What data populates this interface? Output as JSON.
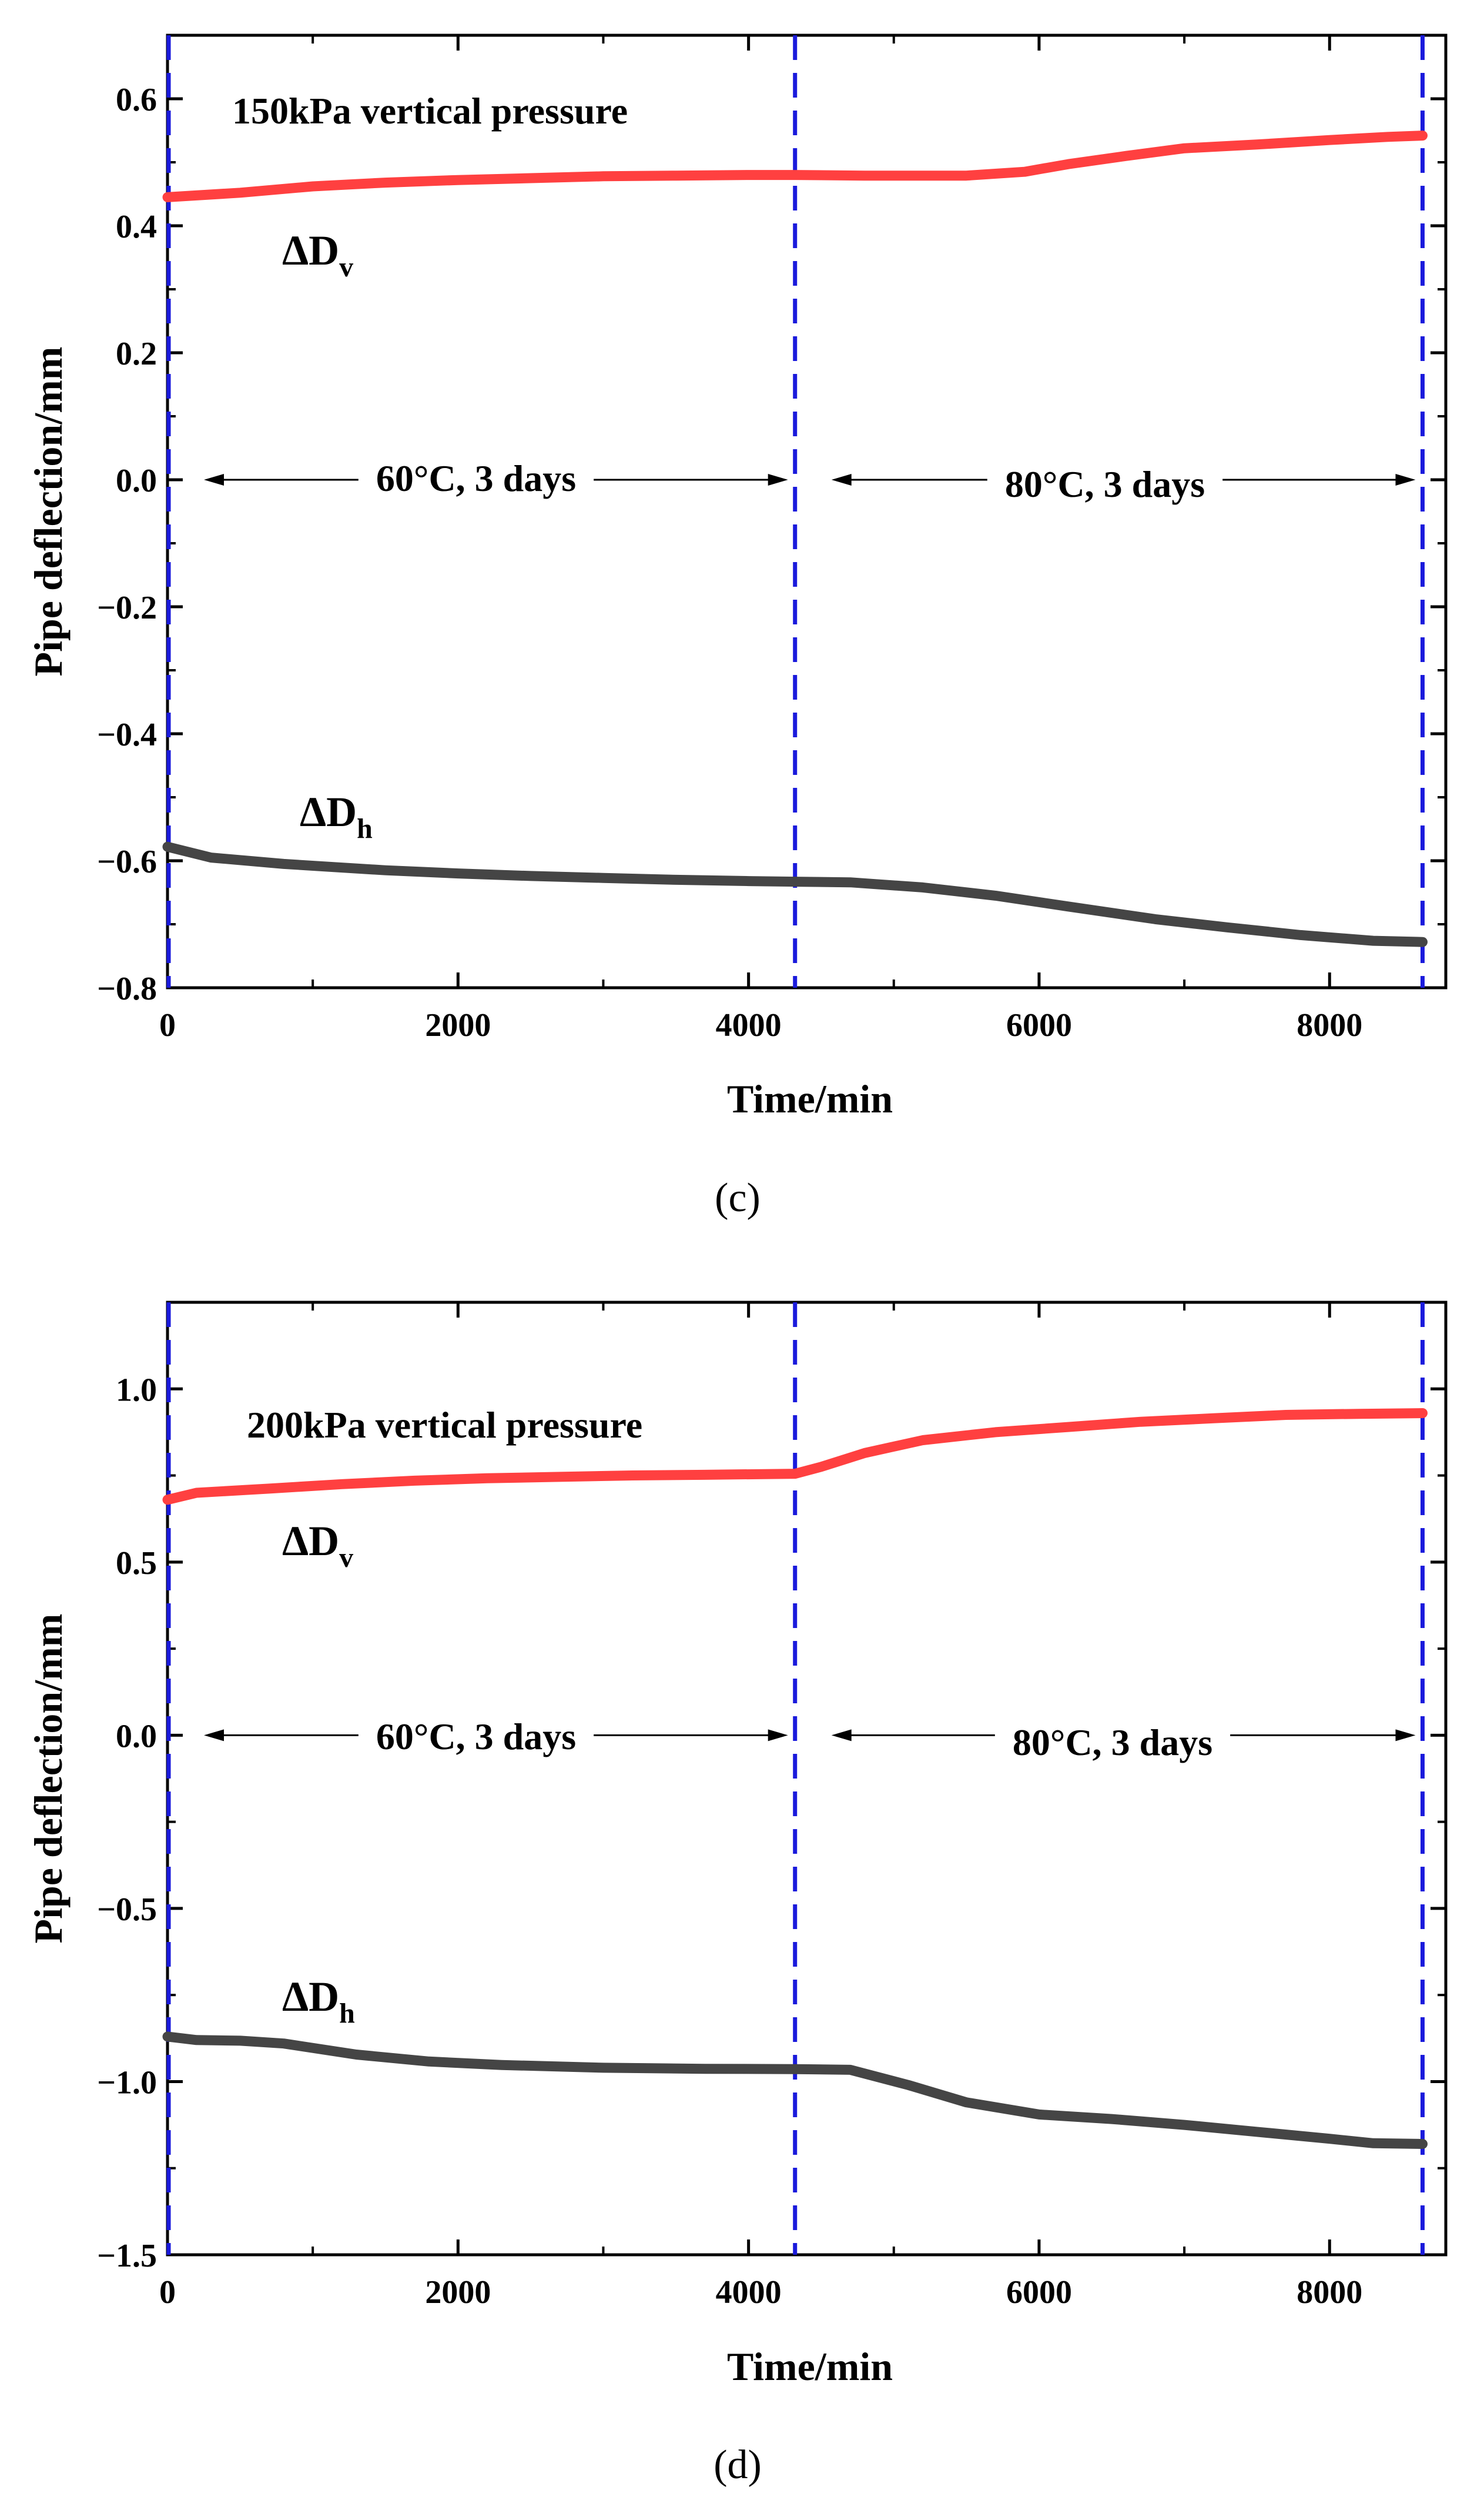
{
  "chart_data": [
    {
      "panel": "(c)",
      "type": "line",
      "xlabel": "Time/min",
      "ylabel": "Pipe deflection/mm",
      "xlim": [
        0,
        8800
      ],
      "ylim": [
        -0.8,
        0.7
      ],
      "xticks": [
        0,
        2000,
        4000,
        6000,
        8000
      ],
      "xtick_labels": [
        "0",
        "2000",
        "4000",
        "6000",
        "8000"
      ],
      "yticks": [
        -0.8,
        -0.6,
        -0.4,
        -0.2,
        0.0,
        0.2,
        0.4,
        0.6
      ],
      "ytick_labels": [
        "−0.8",
        "−0.6",
        "−0.4",
        "−0.2",
        "0.0",
        "0.2",
        "0.4",
        "0.6"
      ],
      "pressure_label": "150kPa vertical pressure",
      "phase_labels": [
        "60°C, 3 days",
        "80°C, 3 days"
      ],
      "phase_arrow_y": 0.0,
      "phase_boundaries": [
        0,
        4320,
        8640
      ],
      "series": [
        {
          "name": "ΔDv",
          "label_main": "ΔD",
          "label_sub": "v",
          "color": "#ff4040",
          "x": [
            0,
            500,
            1000,
            1500,
            2000,
            2500,
            3000,
            3500,
            4000,
            4320,
            4800,
            5500,
            5900,
            6200,
            6600,
            7000,
            7500,
            8000,
            8400,
            8640
          ],
          "y": [
            0.445,
            0.452,
            0.462,
            0.468,
            0.472,
            0.475,
            0.478,
            0.479,
            0.48,
            0.48,
            0.479,
            0.479,
            0.485,
            0.497,
            0.51,
            0.522,
            0.528,
            0.535,
            0.54,
            0.542
          ]
        },
        {
          "name": "ΔDh",
          "label_main": "ΔD",
          "label_sub": "h",
          "color": "#454545",
          "x": [
            0,
            300,
            800,
            1500,
            2000,
            2500,
            3000,
            3500,
            4000,
            4320,
            4700,
            5200,
            5700,
            6200,
            6800,
            7300,
            7800,
            8300,
            8640
          ],
          "y": [
            -0.578,
            -0.595,
            -0.605,
            -0.615,
            -0.62,
            -0.624,
            -0.627,
            -0.63,
            -0.632,
            -0.633,
            -0.634,
            -0.642,
            -0.655,
            -0.672,
            -0.692,
            -0.705,
            -0.717,
            -0.726,
            -0.728
          ]
        }
      ]
    },
    {
      "panel": "(d)",
      "type": "line",
      "xlabel": "Time/min",
      "ylabel": "Pipe deflection/mm",
      "xlim": [
        0,
        8800
      ],
      "ylim": [
        -1.5,
        1.25
      ],
      "xticks": [
        0,
        2000,
        4000,
        6000,
        8000
      ],
      "xtick_labels": [
        "0",
        "2000",
        "4000",
        "6000",
        "8000"
      ],
      "yticks": [
        -1.5,
        -1.0,
        -0.5,
        0.0,
        0.5,
        1.0
      ],
      "ytick_labels": [
        "−1.5",
        "−1.0",
        "−0.5",
        "0.0",
        "0.5",
        "1.0"
      ],
      "pressure_label": "200kPa vertical pressure",
      "phase_labels": [
        "60°C, 3 days",
        "80°C, 3 days"
      ],
      "phase_arrow_y": 0.0,
      "phase_boundaries": [
        0,
        4320,
        8640
      ],
      "series": [
        {
          "name": "ΔDv",
          "label_main": "ΔD",
          "label_sub": "v",
          "color": "#ff4040",
          "x": [
            0,
            200,
            700,
            1200,
            1700,
            2200,
            2700,
            3200,
            3700,
            4320,
            4500,
            4800,
            5200,
            5700,
            6200,
            6700,
            7200,
            7700,
            8200,
            8640
          ],
          "y": [
            0.68,
            0.7,
            0.712,
            0.725,
            0.735,
            0.742,
            0.746,
            0.75,
            0.752,
            0.755,
            0.775,
            0.815,
            0.852,
            0.875,
            0.89,
            0.905,
            0.915,
            0.925,
            0.928,
            0.93
          ]
        },
        {
          "name": "ΔDh",
          "label_main": "ΔD",
          "label_sub": "h",
          "color": "#454545",
          "x": [
            0,
            200,
            500,
            800,
            1300,
            1800,
            2300,
            3000,
            3700,
            4320,
            4700,
            5100,
            5500,
            6000,
            6500,
            7000,
            7500,
            8000,
            8300,
            8640
          ],
          "y": [
            -0.87,
            -0.88,
            -0.882,
            -0.89,
            -0.922,
            -0.942,
            -0.952,
            -0.96,
            -0.963,
            -0.964,
            -0.966,
            -1.01,
            -1.06,
            -1.095,
            -1.108,
            -1.125,
            -1.145,
            -1.165,
            -1.178,
            -1.18
          ]
        }
      ]
    }
  ]
}
